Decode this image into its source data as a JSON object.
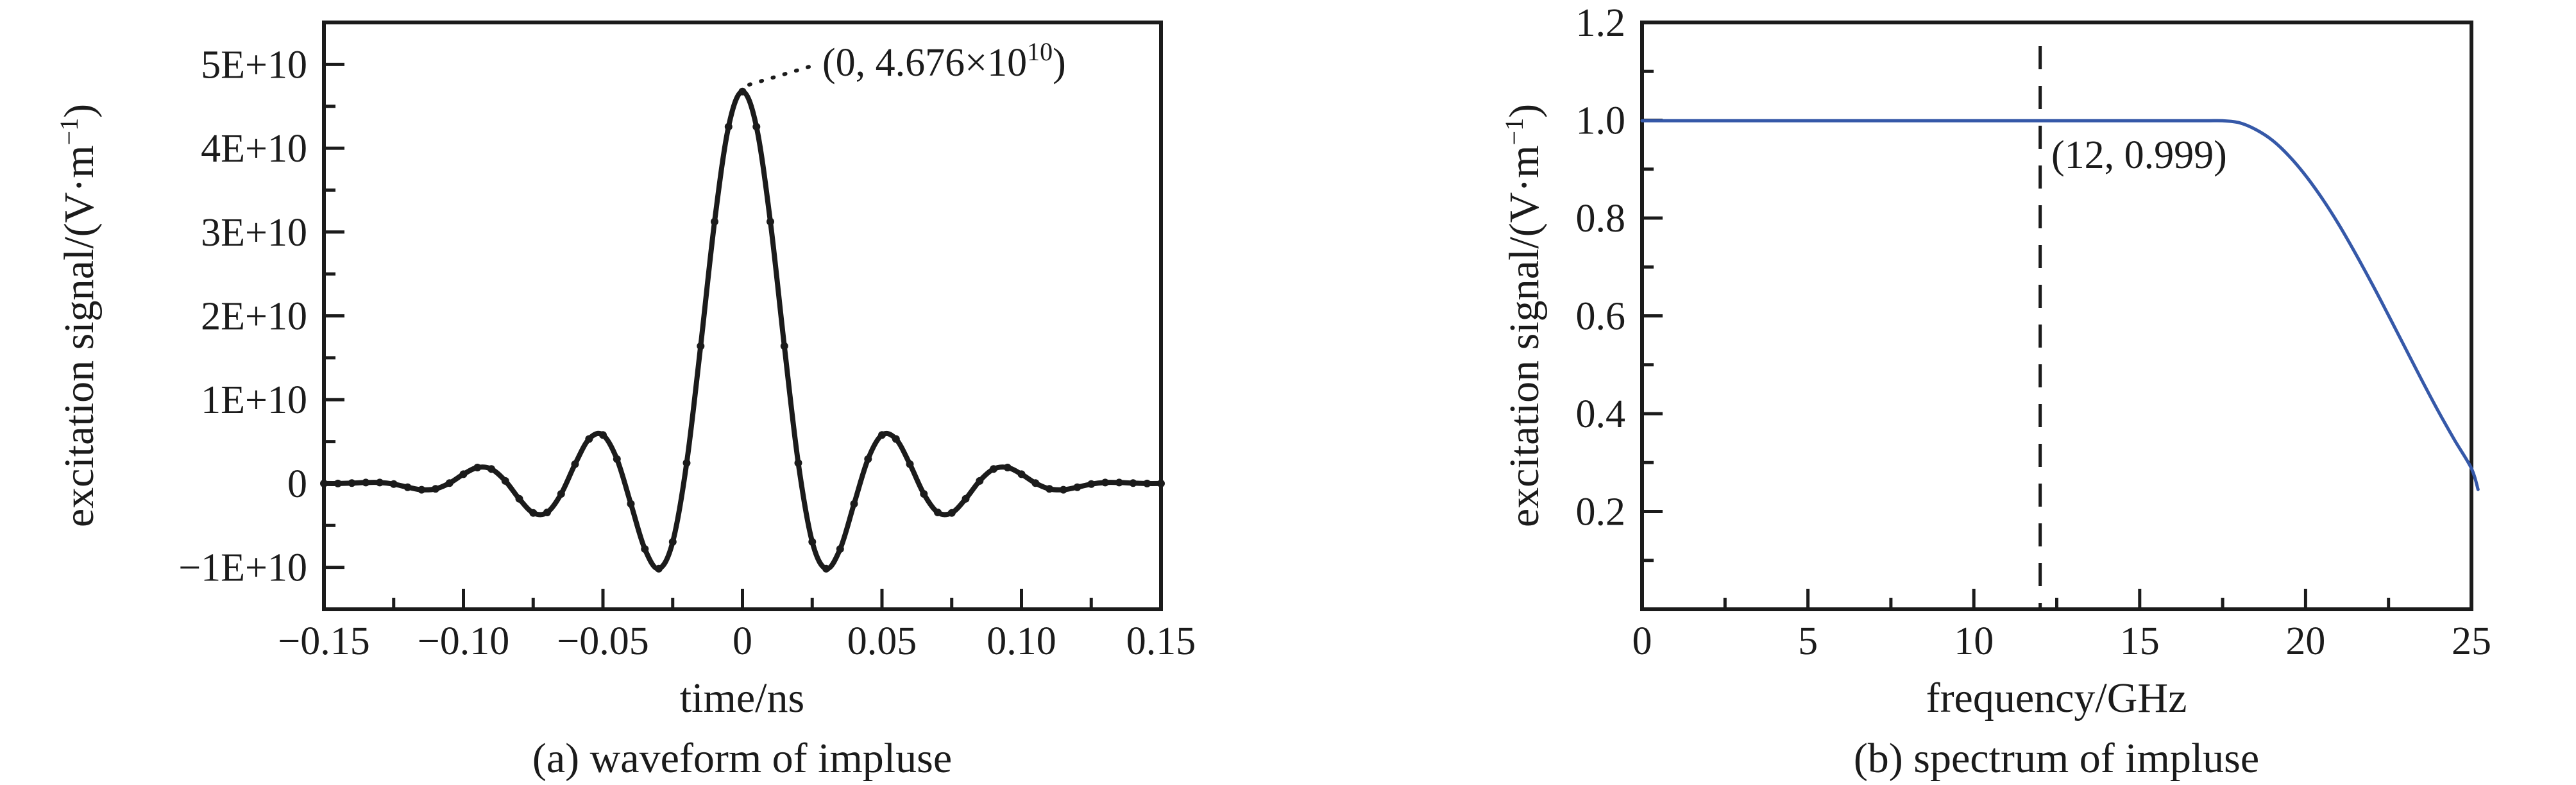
{
  "figure": {
    "background": "#ffffff",
    "text_color": "#1b1b1b",
    "accent_blue": "#3558a8"
  },
  "panels": {
    "a": {
      "caption": "(a) waveform of impluse",
      "xlabel": "time/ns",
      "ylabel_base": "excitation signal/(V·m",
      "ylabel_sup": "−1",
      "ylabel_close": ")",
      "annotation_base": "(0, 4.676×10",
      "annotation_sup": "10",
      "annotation_close": ")"
    },
    "b": {
      "caption": "(b) spectrum of impluse",
      "xlabel": "frequency/GHz",
      "ylabel_base": "excitation signal/(V·m",
      "ylabel_sup": "−1",
      "ylabel_close": ")",
      "annotation": "(12, 0.999)"
    }
  },
  "chart_data": [
    {
      "id": "waveform",
      "type": "line",
      "title": "(a) waveform of impluse",
      "xlabel": "time/ns",
      "ylabel": "excitation signal/(V·m−1)",
      "grid": false,
      "legend": "none",
      "xlim": [
        -0.15,
        0.15
      ],
      "ylim": [
        -1.5,
        5.5
      ],
      "y_unit_exponent": 10,
      "line_color": "#1b1b1b",
      "line_width": 8,
      "marker": "dot",
      "marker_radius": 6,
      "x_ticks": {
        "values": [
          -0.15,
          -0.1,
          -0.05,
          0,
          0.05,
          0.1,
          0.15
        ],
        "labels": [
          "−0.15",
          "−0.10",
          "−0.05",
          "0",
          "0.05",
          "0.10",
          "0.15"
        ]
      },
      "x_minor_ticks": [
        -0.125,
        -0.075,
        -0.025,
        0.025,
        0.075,
        0.125
      ],
      "y_ticks": {
        "values": [
          5,
          4,
          3,
          2,
          1,
          0,
          -1
        ],
        "labels": [
          "5E+10",
          "4E+10",
          "3E+10",
          "2E+10",
          "1E+10",
          "0",
          "−1E+10"
        ]
      },
      "y_minor_ticks": [
        4.5,
        3.5,
        2.5,
        1.5,
        0.5,
        -0.5
      ],
      "peak_annotation": {
        "x": 0,
        "y": 4.676,
        "label": "(0, 4.676×10^10)"
      },
      "x": [
        -0.15,
        -0.145,
        -0.14,
        -0.135,
        -0.13,
        -0.125,
        -0.12,
        -0.115,
        -0.11,
        -0.105,
        -0.1,
        -0.095,
        -0.09,
        -0.085,
        -0.08,
        -0.075,
        -0.07,
        -0.065,
        -0.06,
        -0.055,
        -0.05,
        -0.045,
        -0.04,
        -0.035,
        -0.03,
        -0.025,
        -0.02,
        -0.015,
        -0.01,
        -0.005,
        0,
        0.005,
        0.01,
        0.015,
        0.02,
        0.025,
        0.03,
        0.035,
        0.04,
        0.045,
        0.05,
        0.055,
        0.06,
        0.065,
        0.07,
        0.075,
        0.08,
        0.085,
        0.09,
        0.095,
        0.1,
        0.105,
        0.11,
        0.115,
        0.12,
        0.125,
        0.13,
        0.135,
        0.14,
        0.145,
        0.15
      ],
      "y": [
        0,
        0,
        0.005,
        0.012,
        0.012,
        -0.007,
        -0.044,
        -0.074,
        -0.064,
        0.005,
        0.111,
        0.191,
        0.173,
        0.031,
        -0.183,
        -0.35,
        -0.345,
        -0.124,
        0.231,
        0.531,
        0.579,
        0.292,
        -0.242,
        -0.781,
        -1.016,
        -0.696,
        0.245,
        1.64,
        3.124,
        4.256,
        4.676,
        4.256,
        3.124,
        1.64,
        0.245,
        -0.696,
        -1.016,
        -0.781,
        -0.242,
        0.292,
        0.579,
        0.531,
        0.231,
        -0.124,
        -0.345,
        -0.35,
        -0.183,
        0.031,
        0.173,
        0.191,
        0.111,
        0.005,
        -0.064,
        -0.074,
        -0.044,
        -0.007,
        0.012,
        0.012,
        0.005,
        0,
        0
      ]
    },
    {
      "id": "spectrum",
      "type": "line",
      "title": "(b) spectrum of impluse",
      "xlabel": "frequency/GHz",
      "ylabel": "excitation signal/(V·m−1)",
      "grid": false,
      "legend": "none",
      "xlim": [
        0,
        25
      ],
      "ylim": [
        0,
        1.2
      ],
      "line_color": "#3558a8",
      "line_width": 5,
      "marker": "none",
      "x_ticks": {
        "values": [
          0,
          5,
          10,
          15,
          20,
          25
        ],
        "labels": [
          "0",
          "5",
          "10",
          "15",
          "20",
          "25"
        ]
      },
      "x_minor_ticks": [
        2.5,
        7.5,
        12.5,
        17.5,
        22.5
      ],
      "y_ticks": {
        "values": [
          1.2,
          1.0,
          0.8,
          0.6,
          0.4,
          0.2
        ],
        "labels": [
          "1.2",
          "1.0",
          "0.8",
          "0.6",
          "0.4",
          "0.2"
        ]
      },
      "y_minor_ticks": [
        0.1,
        0.3,
        0.5,
        0.7,
        0.9,
        1.1
      ],
      "vline": {
        "x": 12,
        "style": "dashed",
        "color": "#1b1b1b"
      },
      "point_annotation": {
        "x": 12,
        "y": 0.999,
        "label": "(12, 0.999)"
      },
      "x": [
        0,
        2,
        4,
        6,
        8,
        10,
        12,
        14,
        16,
        17,
        17.5,
        18,
        18.5,
        19,
        19.5,
        20,
        20.5,
        21,
        21.5,
        22,
        22.5,
        23,
        23.5,
        24,
        24.5,
        25,
        25.2
      ],
      "y": [
        0.999,
        0.999,
        0.999,
        0.999,
        0.999,
        0.999,
        0.999,
        0.999,
        0.999,
        0.999,
        0.999,
        0.995,
        0.981,
        0.959,
        0.927,
        0.887,
        0.84,
        0.787,
        0.728,
        0.666,
        0.601,
        0.535,
        0.469,
        0.405,
        0.345,
        0.288,
        0.245
      ]
    }
  ]
}
